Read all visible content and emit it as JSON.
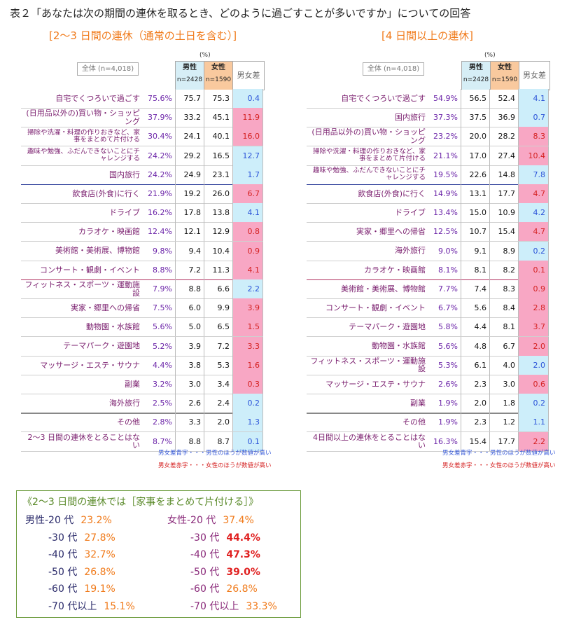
{
  "title": "表２「あなたは次の期間の連休を取るとき、どのように過ごすことが多いですか」についての回答",
  "unit": "(%)",
  "header": {
    "total": "全体 (n=4,018)",
    "male": "男性",
    "female": "女性",
    "male_n": "n=2428",
    "female_n": "n=1590",
    "diff": "男女差"
  },
  "colors": {
    "pos_bg": "#cdeefa",
    "pos_text": "#2a52d8",
    "neg_bg": "#f8a7c4",
    "neg_text": "#d42020",
    "accent": "#f07a1a"
  },
  "tables": [
    {
      "title": "[2〜3 日間の連休（通常の土日を含む）]",
      "rows": [
        {
          "label": "自宅でくつろいで過ごす",
          "total": "75.6%",
          "male": "75.7",
          "female": "75.3",
          "diff": "0.4",
          "sign": "pos"
        },
        {
          "label": "(日用品以外の)買い物・ショッピング",
          "total": "37.9%",
          "male": "33.2",
          "female": "45.1",
          "diff": "11.9",
          "sign": "neg"
        },
        {
          "label": "掃除や洗濯・料理の作りおきなど、家事をまとめて片付ける",
          "total": "30.4%",
          "male": "24.1",
          "female": "40.1",
          "diff": "16.0",
          "sign": "neg",
          "small": true
        },
        {
          "label": "趣味や勉強、ふだんできないことにチャレンジする",
          "total": "24.2%",
          "male": "29.2",
          "female": "16.5",
          "diff": "12.7",
          "sign": "pos",
          "small": true
        },
        {
          "label": "国内旅行",
          "total": "24.2%",
          "male": "24.9",
          "female": "23.1",
          "diff": "1.7",
          "sign": "pos",
          "sep": "blue"
        },
        {
          "label": "飲食店(外食)に行く",
          "total": "21.9%",
          "male": "19.2",
          "female": "26.0",
          "diff": "6.7",
          "sign": "neg"
        },
        {
          "label": "ドライブ",
          "total": "16.2%",
          "male": "17.8",
          "female": "13.8",
          "diff": "4.1",
          "sign": "pos"
        },
        {
          "label": "カラオケ・映画館",
          "total": "12.4%",
          "male": "12.1",
          "female": "12.9",
          "diff": "0.8",
          "sign": "neg"
        },
        {
          "label": "美術館・美術展、博物館",
          "total": "9.8%",
          "male": "9.4",
          "female": "10.4",
          "diff": "0.9",
          "sign": "neg"
        },
        {
          "label": "コンサート・観劇・イベント",
          "total": "8.8%",
          "male": "7.2",
          "female": "11.3",
          "diff": "4.1",
          "sign": "neg",
          "sep": "red"
        },
        {
          "label": "フィットネス・スポーツ・運動施設",
          "total": "7.9%",
          "male": "8.8",
          "female": "6.6",
          "diff": "2.2",
          "sign": "pos"
        },
        {
          "label": "実家・郷里への帰省",
          "total": "7.5%",
          "male": "6.0",
          "female": "9.9",
          "diff": "3.9",
          "sign": "neg"
        },
        {
          "label": "動物園・水族館",
          "total": "5.6%",
          "male": "5.0",
          "female": "6.5",
          "diff": "1.5",
          "sign": "neg"
        },
        {
          "label": "テーマパーク・遊園地",
          "total": "5.2%",
          "male": "3.9",
          "female": "7.2",
          "diff": "3.3",
          "sign": "neg"
        },
        {
          "label": "マッサージ・エステ・サウナ",
          "total": "4.4%",
          "male": "3.8",
          "female": "5.3",
          "diff": "1.6",
          "sign": "neg"
        },
        {
          "label": "副業",
          "total": "3.2%",
          "male": "3.0",
          "female": "3.4",
          "diff": "0.3",
          "sign": "neg"
        },
        {
          "label": "海外旅行",
          "total": "2.5%",
          "male": "2.6",
          "female": "2.4",
          "diff": "0.2",
          "sign": "pos",
          "sep": "gray"
        },
        {
          "label": "その他",
          "total": "2.8%",
          "male": "3.3",
          "female": "2.0",
          "diff": "1.3",
          "sign": "pos"
        },
        {
          "label": "2〜3 日間の連休をとることはない",
          "total": "8.7%",
          "male": "8.8",
          "female": "8.7",
          "diff": "0.1",
          "sign": "pos"
        }
      ]
    },
    {
      "title": "[4 日間以上の連休]",
      "rows": [
        {
          "label": "自宅でくつろいで過ごす",
          "total": "54.9%",
          "male": "56.5",
          "female": "52.4",
          "diff": "4.1",
          "sign": "pos"
        },
        {
          "label": "国内旅行",
          "total": "37.3%",
          "male": "37.5",
          "female": "36.9",
          "diff": "0.7",
          "sign": "pos"
        },
        {
          "label": "(日用品以外の)買い物・ショッピング",
          "total": "23.2%",
          "male": "20.0",
          "female": "28.2",
          "diff": "8.3",
          "sign": "neg"
        },
        {
          "label": "掃除や洗濯・料理の作りおきなど、家事をまとめて片付ける",
          "total": "21.1%",
          "male": "17.0",
          "female": "27.4",
          "diff": "10.4",
          "sign": "neg",
          "small": true
        },
        {
          "label": "趣味や勉強、ふだんできないことにチャレンジする",
          "total": "19.5%",
          "male": "22.6",
          "female": "14.8",
          "diff": "7.8",
          "sign": "pos",
          "small": true,
          "sep": "blue"
        },
        {
          "label": "飲食店(外食)に行く",
          "total": "14.9%",
          "male": "13.1",
          "female": "17.7",
          "diff": "4.7",
          "sign": "neg"
        },
        {
          "label": "ドライブ",
          "total": "13.4%",
          "male": "15.0",
          "female": "10.9",
          "diff": "4.2",
          "sign": "pos"
        },
        {
          "label": "実家・郷里への帰省",
          "total": "12.5%",
          "male": "10.7",
          "female": "15.4",
          "diff": "4.7",
          "sign": "neg"
        },
        {
          "label": "海外旅行",
          "total": "9.0%",
          "male": "9.1",
          "female": "8.9",
          "diff": "0.2",
          "sign": "pos"
        },
        {
          "label": "カラオケ・映画館",
          "total": "8.1%",
          "male": "8.1",
          "female": "8.2",
          "diff": "0.1",
          "sign": "neg",
          "sep": "red"
        },
        {
          "label": "美術館・美術展、博物館",
          "total": "7.7%",
          "male": "7.4",
          "female": "8.3",
          "diff": "0.9",
          "sign": "neg"
        },
        {
          "label": "コンサート・観劇・イベント",
          "total": "6.7%",
          "male": "5.6",
          "female": "8.4",
          "diff": "2.8",
          "sign": "neg"
        },
        {
          "label": "テーマパーク・遊園地",
          "total": "5.8%",
          "male": "4.4",
          "female": "8.1",
          "diff": "3.7",
          "sign": "neg"
        },
        {
          "label": "動物園・水族館",
          "total": "5.6%",
          "male": "4.8",
          "female": "6.7",
          "diff": "2.0",
          "sign": "neg"
        },
        {
          "label": "フィットネス・スポーツ・運動施設",
          "total": "5.3%",
          "male": "6.1",
          "female": "4.0",
          "diff": "2.0",
          "sign": "pos"
        },
        {
          "label": "マッサージ・エステ・サウナ",
          "total": "2.6%",
          "male": "2.3",
          "female": "3.0",
          "diff": "0.6",
          "sign": "neg"
        },
        {
          "label": "副業",
          "total": "1.9%",
          "male": "2.0",
          "female": "1.8",
          "diff": "0.2",
          "sign": "pos",
          "sep": "gray"
        },
        {
          "label": "その他",
          "total": "1.9%",
          "male": "2.3",
          "female": "1.2",
          "diff": "1.1",
          "sign": "pos"
        },
        {
          "label": "4日間以上の連休をとることはない",
          "total": "16.3%",
          "male": "15.4",
          "female": "17.7",
          "diff": "2.2",
          "sign": "neg"
        }
      ]
    }
  ],
  "notes": {
    "blue": "男女差青字・・・男性のほうが数値が高い",
    "red": "男女差赤字・・・女性のほうが数値が高い"
  },
  "summary": {
    "title": "《2〜3 日間の連休では［家事をまとめて片付ける］》",
    "rows": [
      {
        "male_label": "男性-20 代",
        "male_value": "23.2%",
        "female_label": "女性-20 代",
        "female_value": "37.4%",
        "female_hi": false
      },
      {
        "male_label": "-30 代",
        "male_value": "27.8%",
        "female_label": "-30 代",
        "female_value": "44.4%",
        "female_hi": true
      },
      {
        "male_label": "-40 代",
        "male_value": "32.7%",
        "female_label": "-40 代",
        "female_value": "47.3%",
        "female_hi": true
      },
      {
        "male_label": "-50 代",
        "male_value": "26.8%",
        "female_label": "-50 代",
        "female_value": "39.0%",
        "female_hi": true
      },
      {
        "male_label": "-60 代",
        "male_value": "19.1%",
        "female_label": "-60 代",
        "female_value": "26.8%",
        "female_hi": false
      },
      {
        "male_label": "-70 代以上",
        "male_value": "15.1%",
        "female_label": "-70 代以上",
        "female_value": "33.3%",
        "female_hi": false
      }
    ]
  }
}
